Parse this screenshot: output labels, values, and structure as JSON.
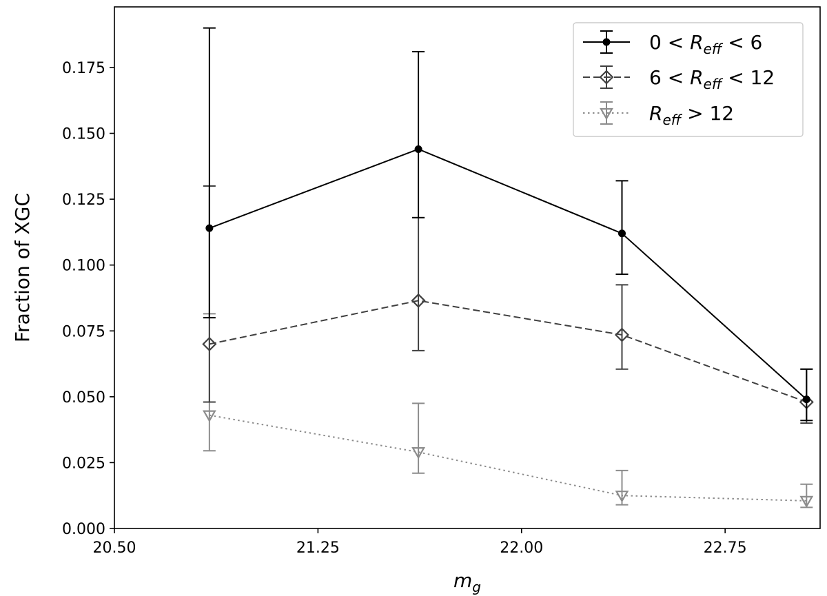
{
  "chart_data": {
    "type": "line",
    "title": "",
    "xlabel": "m_g",
    "ylabel": "Fraction of XGC",
    "xlim": [
      20.5,
      23.1
    ],
    "ylim": [
      0.0,
      0.198
    ],
    "x_ticks": [
      20.5,
      21.25,
      22.0,
      22.75
    ],
    "x_tick_labels": [
      "20.50",
      "21.25",
      "22.00",
      "22.75"
    ],
    "y_ticks": [
      0.0,
      0.025,
      0.05,
      0.075,
      0.1,
      0.125,
      0.15,
      0.175
    ],
    "y_tick_labels": [
      "0.000",
      "0.025",
      "0.050",
      "0.075",
      "0.100",
      "0.125",
      "0.150",
      "0.175"
    ],
    "grid": false,
    "legend_position": "top-right",
    "series": [
      {
        "legend_label": "0 < R_eff < 6",
        "color": "#000000",
        "line_style": "solid",
        "marker": "filled-circle",
        "x": [
          20.85,
          21.62,
          22.37,
          23.05
        ],
        "y": [
          0.114,
          0.144,
          0.112,
          0.049
        ],
        "err_low": [
          0.08,
          0.118,
          0.0965,
          0.041
        ],
        "err_high": [
          0.19,
          0.181,
          0.132,
          0.0605
        ]
      },
      {
        "legend_label": "6 < R_eff < 12",
        "color": "#404040",
        "line_style": "dashed",
        "marker": "open-diamond",
        "x": [
          20.85,
          21.62,
          22.37,
          23.05
        ],
        "y": [
          0.07,
          0.0865,
          0.0735,
          0.048
        ],
        "err_low": [
          0.048,
          0.0675,
          0.0605,
          0.04
        ],
        "err_high": [
          0.13,
          0.118,
          0.0925,
          0.0605
        ]
      },
      {
        "legend_label": "R_eff > 12",
        "color": "#8c8c8c",
        "line_style": "dotted",
        "marker": "open-triangle-down",
        "x": [
          20.85,
          21.62,
          22.37,
          23.05
        ],
        "y": [
          0.043,
          0.029,
          0.0125,
          0.0105
        ],
        "err_low": [
          0.0295,
          0.021,
          0.009,
          0.008
        ],
        "err_high": [
          0.0815,
          0.0475,
          0.022,
          0.0168
        ]
      }
    ]
  }
}
